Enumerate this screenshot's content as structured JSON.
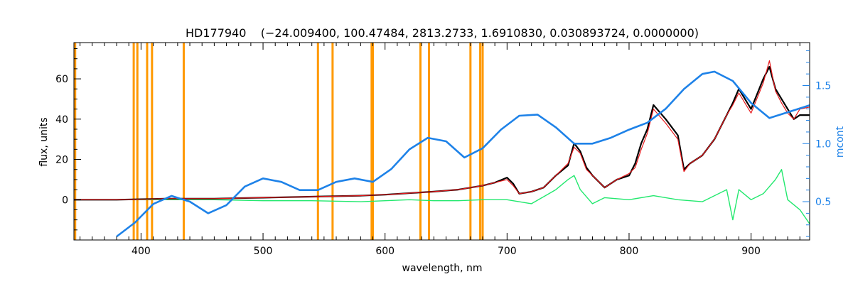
{
  "chart_data": {
    "type": "line",
    "title": "HD177940    (−24.009400, 100.47484, 2813.2733, 1.6910830, 0.030893724, 0.0000000)",
    "xlabel": "wavelength, nm",
    "ylabel": "flux, units",
    "y2label": "mcont",
    "xlim": [
      345,
      948
    ],
    "ylim": [
      -20,
      78
    ],
    "y2lim": [
      0.17,
      1.87
    ],
    "xticks": [
      "400",
      "500",
      "600",
      "700",
      "800",
      "900"
    ],
    "xtick_values": [
      400,
      500,
      600,
      700,
      800,
      900
    ],
    "yticks": [
      "0",
      "20",
      "40",
      "60"
    ],
    "ytick_values": [
      0,
      20,
      40,
      60
    ],
    "y2ticks": [
      "0.5",
      "1.0",
      "1.5"
    ],
    "y2tick_values": [
      0.5,
      1.0,
      1.5
    ],
    "vlines": [
      346,
      394,
      397,
      405,
      409,
      435,
      545,
      557,
      589,
      590,
      629,
      636,
      670,
      678,
      680
    ],
    "colors": {
      "observed": "#000000",
      "model": "#e8191c",
      "residual": "#22e86e",
      "continuum": "#1e82e8",
      "lines": "#ff9900"
    },
    "series": [
      {
        "key": "observed",
        "axis": "left",
        "x": [
          345,
          380,
          420,
          460,
          500,
          540,
          580,
          600,
          640,
          660,
          680,
          690,
          700,
          705,
          710,
          720,
          730,
          740,
          750,
          755,
          760,
          765,
          770,
          780,
          790,
          800,
          805,
          810,
          815,
          820,
          830,
          840,
          845,
          850,
          860,
          870,
          880,
          885,
          890,
          900,
          910,
          915,
          920,
          925,
          930,
          935,
          940,
          948
        ],
        "y": [
          0,
          0,
          0.5,
          0.5,
          1,
          1.5,
          2,
          2.5,
          4,
          5,
          7,
          8.5,
          11,
          8,
          3,
          4,
          6,
          12,
          17,
          28,
          24,
          16,
          12,
          6,
          10,
          12,
          18,
          28,
          35,
          47,
          40,
          32,
          15,
          18,
          22,
          30,
          42,
          48,
          55,
          45,
          60,
          66,
          55,
          50,
          45,
          40,
          42,
          42
        ]
      },
      {
        "key": "model",
        "axis": "left",
        "x": [
          345,
          380,
          420,
          460,
          500,
          540,
          580,
          600,
          640,
          660,
          680,
          690,
          700,
          705,
          710,
          720,
          730,
          740,
          750,
          755,
          760,
          765,
          770,
          780,
          790,
          800,
          805,
          810,
          815,
          820,
          830,
          840,
          845,
          850,
          860,
          870,
          880,
          885,
          890,
          900,
          910,
          915,
          920,
          925,
          930,
          935,
          940,
          948
        ],
        "y": [
          0,
          0,
          0.5,
          0.5,
          1,
          1.5,
          2,
          2.5,
          4,
          5,
          7,
          8.5,
          10,
          7,
          3,
          4,
          6,
          12,
          18,
          26,
          23,
          15,
          12,
          6,
          10,
          13,
          16,
          25,
          33,
          45,
          38,
          30,
          14,
          18,
          22,
          30,
          42,
          47,
          53,
          43,
          58,
          69,
          54,
          48,
          43,
          40,
          45,
          46
        ]
      },
      {
        "key": "residual",
        "axis": "left",
        "x": [
          380,
          420,
          460,
          500,
          540,
          580,
          620,
          640,
          660,
          680,
          700,
          720,
          740,
          750,
          755,
          760,
          770,
          780,
          800,
          820,
          840,
          860,
          880,
          885,
          890,
          900,
          910,
          920,
          925,
          930,
          940,
          948
        ],
        "y": [
          0,
          0,
          0,
          -0.5,
          -0.5,
          -1,
          0,
          -0.5,
          -0.5,
          0,
          0,
          -2,
          5,
          10,
          12,
          5,
          -2,
          1,
          0,
          2,
          0,
          -1,
          5,
          -10,
          5,
          0,
          3,
          10,
          15,
          0,
          -5,
          -12
        ]
      },
      {
        "key": "continuum",
        "axis": "right",
        "x": [
          380,
          395,
          410,
          425,
          440,
          455,
          470,
          485,
          500,
          515,
          530,
          545,
          560,
          575,
          590,
          605,
          620,
          635,
          650,
          665,
          680,
          695,
          710,
          725,
          740,
          755,
          770,
          785,
          800,
          815,
          830,
          845,
          860,
          870,
          885,
          900,
          915,
          930,
          948
        ],
        "y": [
          0.2,
          0.32,
          0.48,
          0.55,
          0.5,
          0.4,
          0.47,
          0.63,
          0.7,
          0.67,
          0.6,
          0.6,
          0.67,
          0.7,
          0.67,
          0.78,
          0.95,
          1.05,
          1.02,
          0.88,
          0.96,
          1.12,
          1.24,
          1.25,
          1.14,
          1.0,
          1.0,
          1.05,
          1.12,
          1.18,
          1.3,
          1.47,
          1.6,
          1.62,
          1.54,
          1.35,
          1.22,
          1.27,
          1.33
        ]
      }
    ]
  }
}
